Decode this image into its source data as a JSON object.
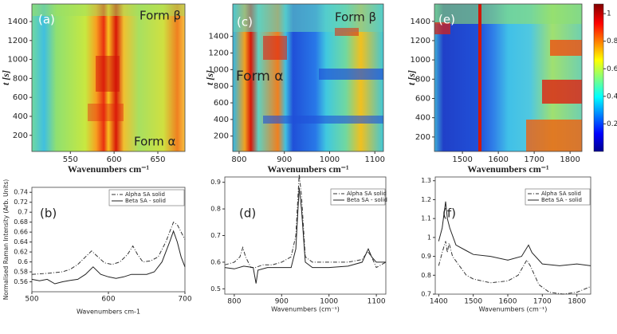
{
  "chart_data": [
    {
      "type": "heatmap",
      "panel_label": "(a)",
      "annotations": [
        "Form β",
        "Form α"
      ],
      "xlabel": "Wavenumbers cm⁻¹",
      "ylabel": "t [s]",
      "xlim": [
        506,
        681
      ],
      "ylim": [
        30,
        1585
      ],
      "xticks": [
        550,
        600,
        650
      ],
      "yticks": [
        200,
        400,
        600,
        800,
        1000,
        1200,
        1400
      ]
    },
    {
      "type": "heatmap",
      "panel_label": "(c)",
      "annotations": [
        "Form β",
        "Form α"
      ],
      "xlabel": "Wavenumbers cm⁻¹",
      "ylabel": "t [s]",
      "xlim": [
        786,
        1119
      ],
      "ylim": [
        15,
        1790
      ],
      "xticks": [
        800,
        900,
        1000,
        1100
      ],
      "yticks": [
        200,
        400,
        600,
        800,
        1000,
        1200,
        1400
      ]
    },
    {
      "type": "heatmap",
      "panel_label": "(e)",
      "annotations": [],
      "xlabel": "Wavenumbers cm⁻¹",
      "ylabel": "t [s]",
      "xlim": [
        1422,
        1833
      ],
      "ylim": [
        50,
        1580
      ],
      "xticks": [
        1500,
        1600,
        1700,
        1800
      ],
      "yticks": [
        200,
        400,
        600,
        800,
        1000,
        1200,
        1400
      ],
      "clim": [
        0,
        1.07
      ],
      "cticks": [
        0.2,
        0.4,
        0.6,
        0.8,
        1
      ]
    },
    {
      "type": "line",
      "panel_label": "(b)",
      "xlabel": "Wavenumbers cm-1",
      "ylabel": "Normalised Raman Intensity (Arb. Units)",
      "xlim": [
        500,
        700
      ],
      "ylim": [
        0.54,
        0.75
      ],
      "xticks": [
        500,
        600,
        700
      ],
      "yticks": [
        0.56,
        0.58,
        0.6,
        0.62,
        0.64,
        0.66,
        0.68,
        0.7,
        0.72,
        0.74
      ],
      "series": [
        {
          "name": "Alpha SA solid",
          "color": "#333333",
          "linestyle": "dashdot",
          "x": [
            500,
            520,
            540,
            550,
            560,
            570,
            578,
            585,
            595,
            605,
            615,
            625,
            632,
            638,
            645,
            655,
            665,
            675,
            685,
            690,
            700
          ],
          "values": [
            0.575,
            0.577,
            0.58,
            0.585,
            0.595,
            0.61,
            0.622,
            0.612,
            0.598,
            0.595,
            0.6,
            0.615,
            0.632,
            0.615,
            0.6,
            0.602,
            0.61,
            0.64,
            0.68,
            0.675,
            0.645
          ]
        },
        {
          "name": "Beta SA - solid",
          "color": "#222222",
          "linestyle": "solid",
          "x": [
            500,
            510,
            520,
            530,
            540,
            550,
            560,
            570,
            580,
            590,
            600,
            610,
            620,
            630,
            640,
            650,
            660,
            670,
            680,
            685,
            690,
            695,
            700
          ],
          "values": [
            0.565,
            0.562,
            0.565,
            0.556,
            0.56,
            0.563,
            0.565,
            0.575,
            0.59,
            0.575,
            0.57,
            0.567,
            0.57,
            0.575,
            0.575,
            0.575,
            0.58,
            0.6,
            0.64,
            0.662,
            0.64,
            0.61,
            0.59
          ]
        }
      ]
    },
    {
      "type": "line",
      "panel_label": "(d)",
      "xlabel": "Wavenumbers (cm⁻¹)",
      "xlim": [
        780,
        1120
      ],
      "ylim": [
        0.48,
        0.92
      ],
      "xticks": [
        800,
        900,
        1000,
        1100
      ],
      "yticks": [
        0.5,
        0.6,
        0.7,
        0.8,
        0.9
      ],
      "series": [
        {
          "name": "Alpha SA solid",
          "color": "#333333",
          "linestyle": "dashdot",
          "x": [
            780,
            800,
            812,
            818,
            824,
            835,
            845,
            860,
            880,
            900,
            920,
            930,
            937,
            942,
            950,
            965,
            1000,
            1040,
            1070,
            1082,
            1090,
            1100,
            1120
          ],
          "values": [
            0.59,
            0.6,
            0.62,
            0.655,
            0.62,
            0.58,
            0.58,
            0.59,
            0.59,
            0.6,
            0.62,
            0.7,
            0.93,
            0.85,
            0.62,
            0.6,
            0.6,
            0.6,
            0.61,
            0.64,
            0.62,
            0.58,
            0.6
          ]
        },
        {
          "name": "Beta SA - solid",
          "color": "#222222",
          "linestyle": "solid",
          "x": [
            780,
            800,
            820,
            840,
            846,
            850,
            870,
            900,
            920,
            930,
            937,
            942,
            950,
            965,
            1000,
            1040,
            1070,
            1083,
            1090,
            1100,
            1120
          ],
          "values": [
            0.58,
            0.575,
            0.585,
            0.58,
            0.52,
            0.57,
            0.58,
            0.58,
            0.58,
            0.65,
            0.88,
            0.8,
            0.6,
            0.58,
            0.58,
            0.585,
            0.6,
            0.65,
            0.62,
            0.6,
            0.6
          ]
        }
      ]
    },
    {
      "type": "line",
      "panel_label": "(f)",
      "xlabel": "Wavenumbers (cm⁻¹)",
      "xlim": [
        1390,
        1840
      ],
      "ylim": [
        0.7,
        1.32
      ],
      "xticks": [
        1400,
        1500,
        1600,
        1700,
        1800
      ],
      "yticks": [
        0.7,
        0.8,
        0.9,
        1,
        1.1,
        1.2,
        1.3
      ],
      "series": [
        {
          "name": "Alpha SA solid",
          "color": "#333333",
          "linestyle": "dashdot",
          "x": [
            1400,
            1410,
            1420,
            1425,
            1430,
            1440,
            1460,
            1480,
            1500,
            1550,
            1600,
            1630,
            1655,
            1665,
            1690,
            1720,
            1760,
            1800,
            1840
          ],
          "values": [
            0.85,
            0.92,
            0.98,
            0.92,
            0.97,
            0.9,
            0.85,
            0.8,
            0.78,
            0.76,
            0.77,
            0.8,
            0.88,
            0.85,
            0.75,
            0.71,
            0.7,
            0.71,
            0.74
          ]
        },
        {
          "name": "Beta SA - solid",
          "color": "#222222",
          "linestyle": "solid",
          "x": [
            1400,
            1410,
            1420,
            1425,
            1432,
            1450,
            1480,
            1500,
            1550,
            1600,
            1640,
            1660,
            1670,
            1700,
            1750,
            1800,
            1840
          ],
          "values": [
            0.98,
            1.05,
            1.19,
            1.1,
            1.05,
            0.96,
            0.93,
            0.91,
            0.9,
            0.88,
            0.9,
            0.96,
            0.92,
            0.86,
            0.85,
            0.86,
            0.85
          ]
        }
      ]
    }
  ]
}
